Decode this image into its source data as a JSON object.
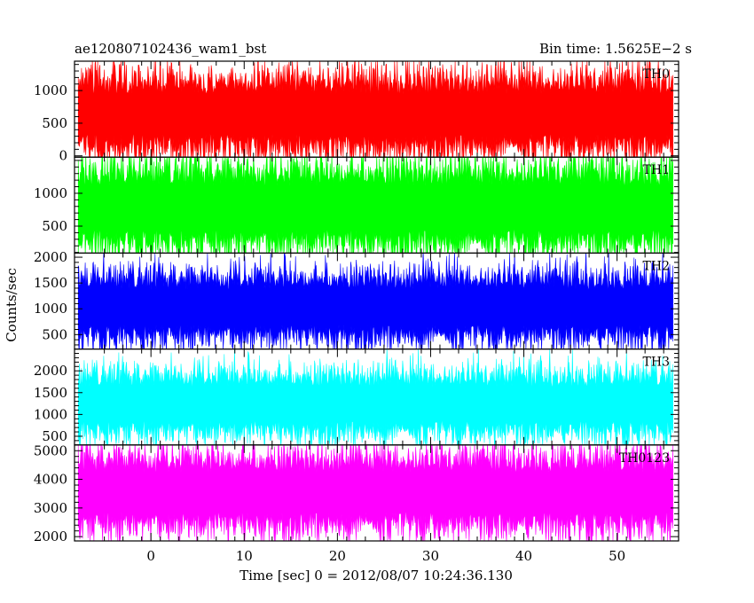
{
  "chart_data": {
    "type": "line",
    "title": "ae120807102436_wam1_bst",
    "subtitle": "Bin time: 1.5625E−2 s",
    "xlabel": "Time [sec] 0 = 2012/08/07 10:24:36.130",
    "ylabel": "Counts/sec",
    "xlim": [
      -8.2,
      56.6
    ],
    "x_range": [
      -7.8,
      56.0
    ],
    "x_ticks": [
      0,
      10,
      20,
      30,
      40,
      50
    ],
    "grid": false,
    "panels": [
      {
        "name": "TH0",
        "color": "#ff0000",
        "ylim": [
          -20,
          1450
        ],
        "y_ticks": [
          0,
          500,
          1000
        ],
        "base": 640,
        "spread": 560,
        "typical_min": 30,
        "typical_max": 1350
      },
      {
        "name": "TH1",
        "color": "#00ff00",
        "ylim": [
          90,
          1550
        ],
        "y_ticks": [
          500,
          1000
        ],
        "base": 780,
        "spread": 600,
        "typical_min": 150,
        "typical_max": 1500
      },
      {
        "name": "TH2",
        "color": "#0000ff",
        "ylim": [
          220,
          2080
        ],
        "y_ticks": [
          500,
          1000,
          1500,
          2000
        ],
        "base": 1030,
        "spread": 620,
        "typical_min": 280,
        "typical_max": 2050
      },
      {
        "name": "TH3",
        "color": "#00ffff",
        "ylim": [
          300,
          2500
        ],
        "y_ticks": [
          500,
          1000,
          1500,
          2000
        ],
        "base": 1240,
        "spread": 700,
        "typical_min": 380,
        "typical_max": 2400
      },
      {
        "name": "TH0123",
        "color": "#ff00ff",
        "ylim": [
          1850,
          5200
        ],
        "y_ticks": [
          2000,
          3000,
          4000,
          5000
        ],
        "base": 3550,
        "spread": 1250,
        "typical_min": 2000,
        "typical_max": 5100
      }
    ]
  }
}
